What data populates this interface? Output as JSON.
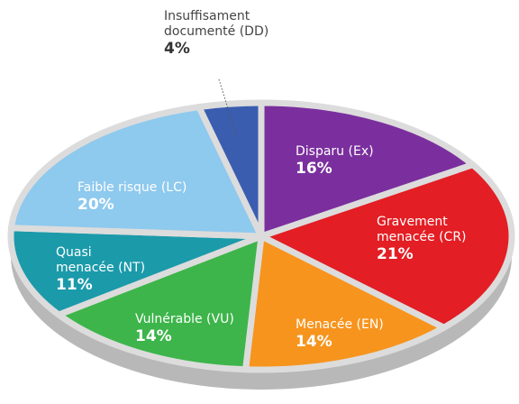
{
  "chart_data": {
    "type": "pie",
    "categories": [
      "Disparu (Ex)",
      "Gravement menacée (CR)",
      "Menacée (EN)",
      "Vulnérable (VU)",
      "Quasi menacée (NT)",
      "Faible risque (LC)",
      "Insuffisament documenté (DD)"
    ],
    "values": [
      16,
      21,
      14,
      14,
      11,
      20,
      4
    ],
    "value_labels": [
      "16%",
      "21%",
      "14%",
      "14%",
      "11%",
      "20%",
      "4%"
    ],
    "colors": [
      "#7b2f9e",
      "#e31e24",
      "#f7941d",
      "#3db54a",
      "#1b9aaa",
      "#8ec9ee",
      "#3b5db0"
    ]
  }
}
